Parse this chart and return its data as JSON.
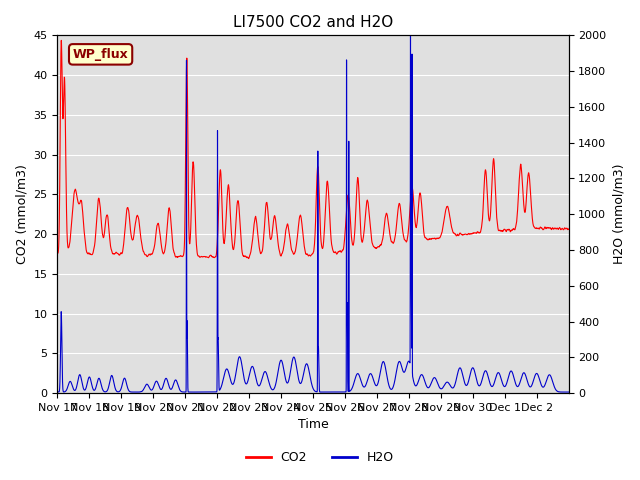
{
  "title": "LI7500 CO2 and H2O",
  "xlabel": "Time",
  "ylabel_left": "CO2 (mmol/m3)",
  "ylabel_right": "H2O (mmol/m3)",
  "ylim_left": [
    0,
    45
  ],
  "ylim_right": [
    0,
    2000
  ],
  "yticks_left": [
    0,
    5,
    10,
    15,
    20,
    25,
    30,
    35,
    40,
    45
  ],
  "yticks_right": [
    0,
    200,
    400,
    600,
    800,
    1000,
    1200,
    1400,
    1600,
    1800,
    2000
  ],
  "xtick_labels": [
    "Nov 17",
    "Nov 18",
    "Nov 19",
    "Nov 20",
    "Nov 21",
    "Nov 22",
    "Nov 23",
    "Nov 24",
    "Nov 25",
    "Nov 26",
    "Nov 27",
    "Nov 28",
    "Nov 29",
    "Nov 30",
    "Dec 1",
    "Dec 2"
  ],
  "co2_color": "#ff0000",
  "h2o_color": "#0000cc",
  "background_color": "#ffffff",
  "plot_bg_color": "#e0e0e0",
  "annotation_text": "WP_flux",
  "annotation_color": "#8B0000",
  "annotation_bg": "#ffffcc",
  "title_fontsize": 11,
  "axis_label_fontsize": 9,
  "tick_fontsize": 8,
  "legend_fontsize": 9,
  "line_width": 0.8,
  "n_days": 16,
  "pts_per_day": 480,
  "co2_base": 18.0,
  "h2o_base": 6.0
}
